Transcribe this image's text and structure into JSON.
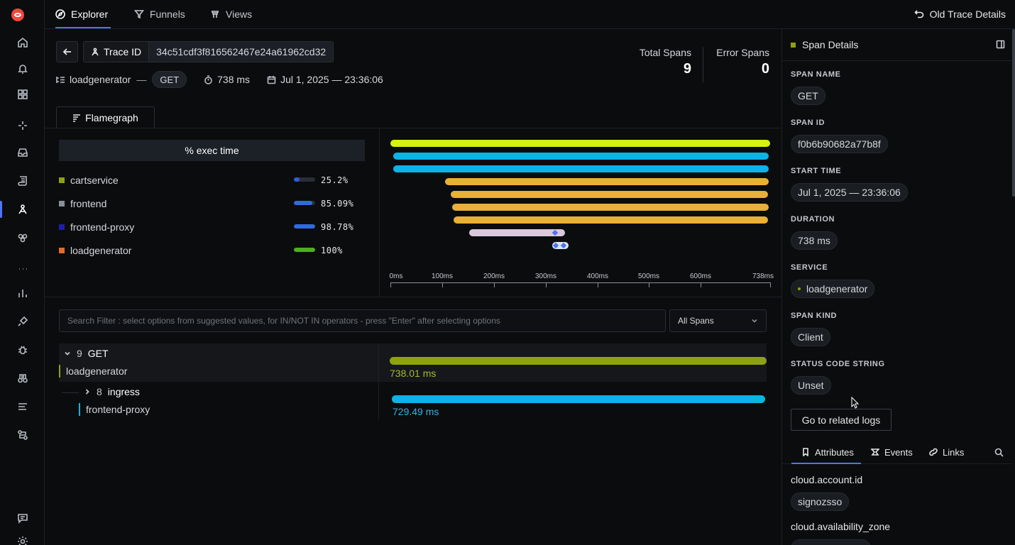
{
  "nav": {
    "tabs": [
      {
        "label": "Explorer",
        "icon": "compass-icon",
        "active": true
      },
      {
        "label": "Funnels",
        "icon": "funnel-icon",
        "active": false
      },
      {
        "label": "Views",
        "icon": "views-icon",
        "active": false
      }
    ],
    "old_trace_label": "Old Trace Details"
  },
  "trace": {
    "id_label": "Trace ID",
    "id_value": "34c51cdf3f816562467e24a61962cd32",
    "service": "loadgenerator",
    "method": "GET",
    "duration": "738 ms",
    "timestamp": "Jul 1, 2025 — 23:36:06",
    "total_spans_label": "Total Spans",
    "total_spans_value": "9",
    "error_spans_label": "Error Spans",
    "error_spans_value": "0"
  },
  "flamegraph": {
    "tab_label": "Flamegraph",
    "exec_header": "% exec time",
    "services": [
      {
        "name": "cartservice",
        "color": "#8ea20e",
        "pct_label": "25.2%",
        "fraction": 0.252,
        "bar_color": "#2f5bd6"
      },
      {
        "name": "frontend",
        "color": "#8a8f98",
        "pct_label": "85.09%",
        "fraction": 0.8509,
        "bar_color": "#2f6be0"
      },
      {
        "name": "frontend-proxy",
        "color": "#1c1fa8",
        "pct_label": "98.78%",
        "fraction": 0.9878,
        "bar_color": "#2f6be0"
      },
      {
        "name": "loadgenerator",
        "color": "#e06d2a",
        "pct_label": "100%",
        "fraction": 1.0,
        "bar_color": "#4caf24"
      }
    ],
    "axis_ticks": [
      "0ms",
      "100ms",
      "200ms",
      "300ms",
      "400ms",
      "500ms",
      "600ms",
      "738ms"
    ]
  },
  "filter": {
    "placeholder": "Search Filter : select options from suggested values, for IN/NOT IN operators - press \"Enter\" after selecting options",
    "select_value": "All Spans"
  },
  "waterfall": {
    "rows": [
      {
        "count": "9",
        "name": "GET",
        "service": "loadgenerator",
        "duration": "738.01 ms",
        "color": "#8ea20e",
        "expanded": true
      },
      {
        "count": "8",
        "name": "ingress",
        "service": "frontend-proxy",
        "duration": "729.49 ms",
        "color": "#0bb4e4",
        "expanded": false
      }
    ]
  },
  "span_details": {
    "title": "Span Details",
    "fields": [
      {
        "label": "SPAN NAME",
        "value": "GET"
      },
      {
        "label": "SPAN ID",
        "value": "f0b6b90682a77b8f"
      },
      {
        "label": "START TIME",
        "value": "Jul 1, 2025 — 23:36:06"
      },
      {
        "label": "DURATION",
        "value": "738 ms"
      },
      {
        "label": "SERVICE",
        "value": "loadgenerator"
      },
      {
        "label": "SPAN KIND",
        "value": "Client"
      },
      {
        "label": "STATUS CODE STRING",
        "value": "Unset"
      }
    ],
    "related_logs": "Go to related logs",
    "tabs": [
      "Attributes",
      "Events",
      "Links"
    ],
    "attributes": [
      {
        "key": "cloud.account.id",
        "value": "signozsso"
      },
      {
        "key": "cloud.availability_zone",
        "value": ""
      }
    ]
  }
}
